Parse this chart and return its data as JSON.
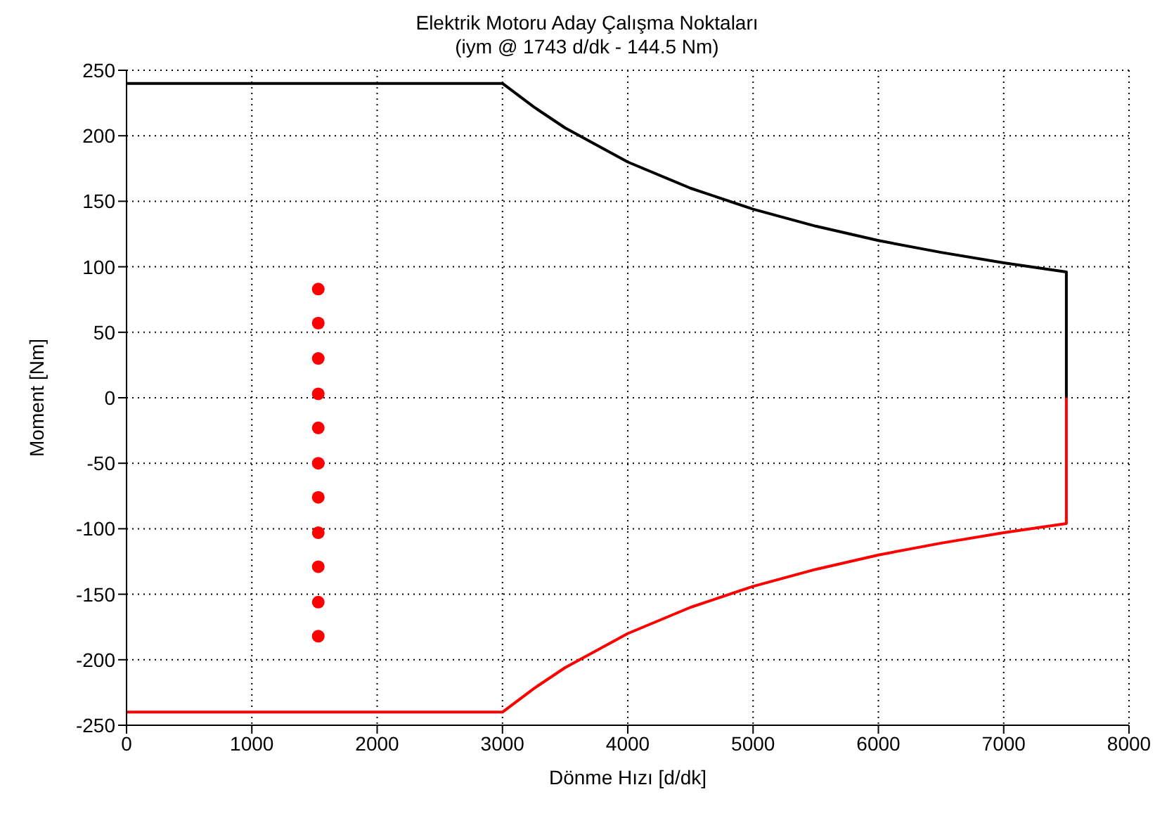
{
  "chart_data": {
    "type": "line",
    "title": "Elektrik Motoru Aday Çalışma Noktaları",
    "subtitle": "(iym @ 1743 d/dk - 144.5 Nm)",
    "xlabel": "Dönme Hızı [d/dk]",
    "ylabel": "Moment [Nm]",
    "series": [
      {
        "color": "#000000",
        "x": [
          0,
          3000,
          3250,
          3500,
          4000,
          4500,
          5000,
          5500,
          6000,
          6500,
          7000,
          7500,
          7500
        ],
        "values": [
          240,
          240,
          222,
          206,
          180,
          160,
          144,
          131,
          120,
          111,
          103,
          96,
          0
        ]
      },
      {
        "color": "#ff0000",
        "x": [
          0,
          3000,
          3250,
          3500,
          4000,
          4500,
          5000,
          5500,
          6000,
          6500,
          7000,
          7500,
          7500
        ],
        "values": [
          -240,
          -240,
          -222,
          -206,
          -180,
          -160,
          -144,
          -131,
          -120,
          -111,
          -103,
          -96,
          0
        ]
      },
      {
        "type": "scatter",
        "color": "#ff0000",
        "x": [
          1530,
          1530,
          1530,
          1530,
          1530,
          1530,
          1530,
          1530,
          1530,
          1530,
          1530
        ],
        "values": [
          83,
          57,
          30,
          3,
          -23,
          -50,
          -76,
          -103,
          -129,
          -156,
          -182
        ]
      }
    ],
    "xlim": [
      0,
      8000
    ],
    "xticks": [
      0,
      1000,
      2000,
      3000,
      4000,
      5000,
      6000,
      7000,
      8000
    ],
    "ylim": [
      -250,
      250
    ],
    "yticks": [
      -250,
      -200,
      -150,
      -100,
      -50,
      0,
      50,
      100,
      150,
      200,
      250
    ],
    "grid": true,
    "line_style": "solid"
  }
}
